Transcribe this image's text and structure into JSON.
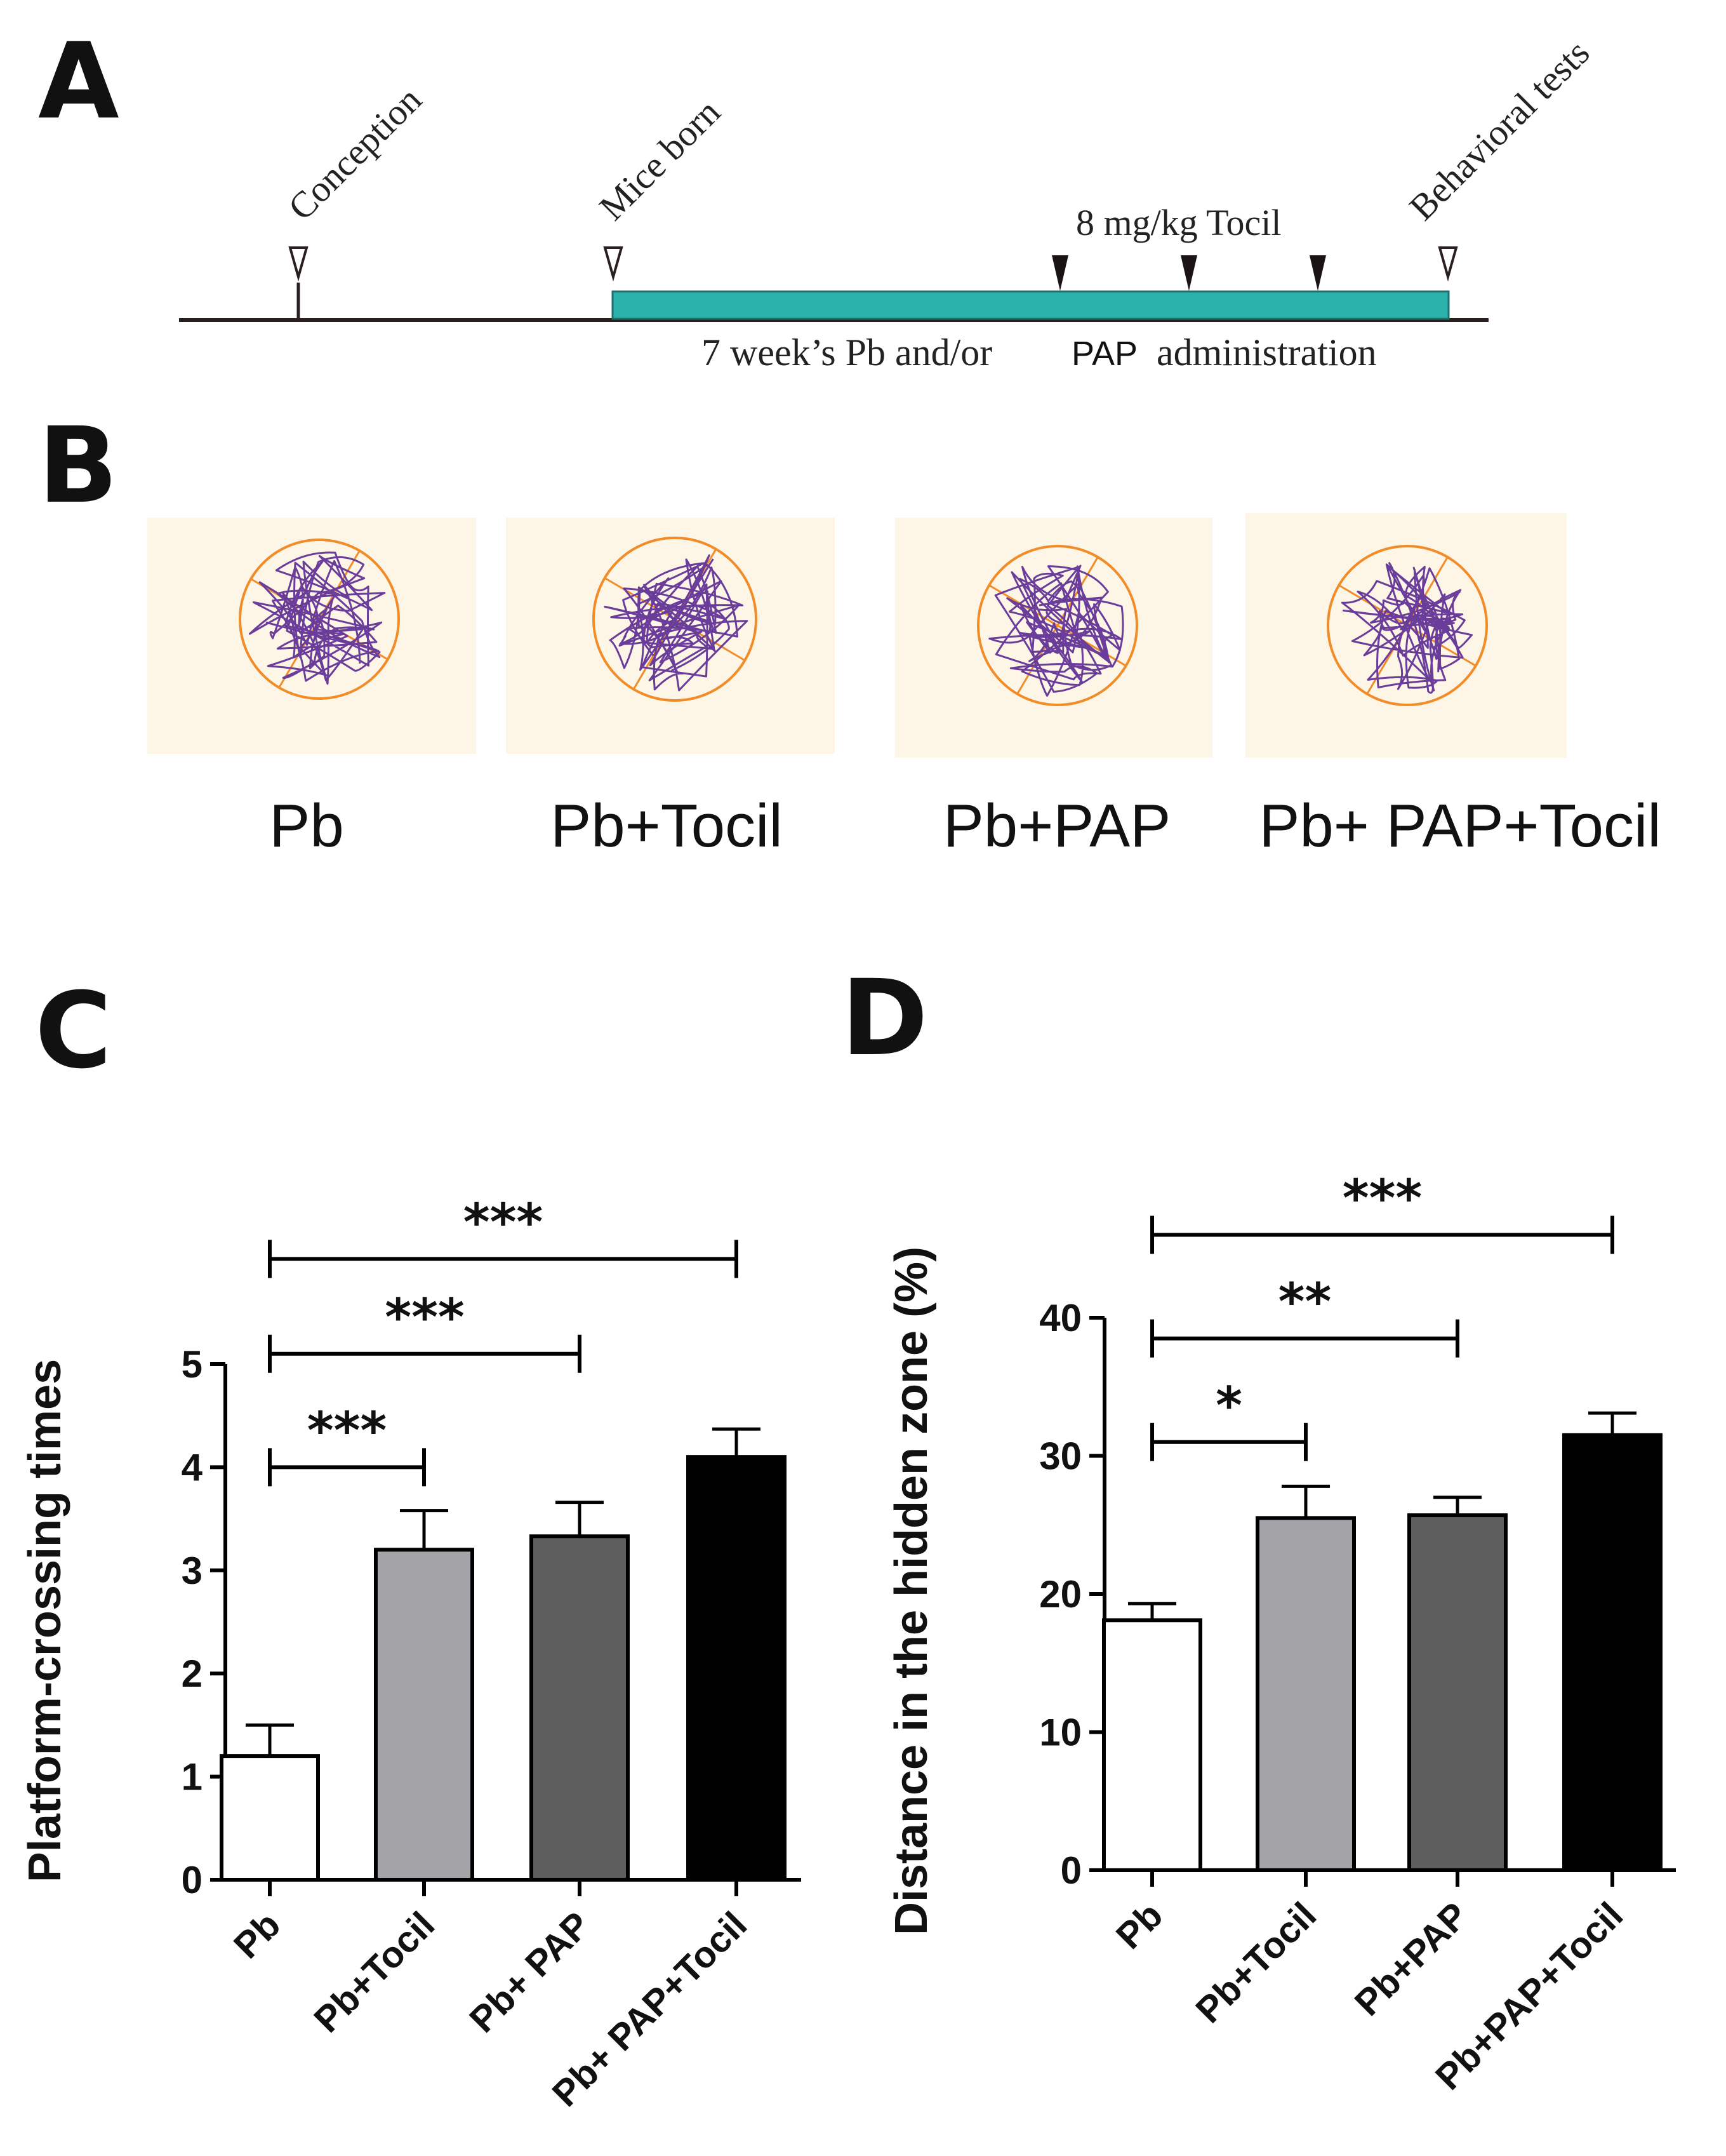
{
  "panels": {
    "a": "A",
    "b": "B",
    "c": "C",
    "d": "D"
  },
  "timeline": {
    "conception": "Conception",
    "mice_born": "Mice born",
    "behavioral_tests": "Behavioral tests",
    "tocil_dose": "8 mg/kg Tocil",
    "admin_prefix": "7 week’s Pb and/or",
    "admin_pap": "PAP",
    "admin_suffix": "administration",
    "colors": {
      "bar": "#2bb3ab",
      "line": "#2a1f1f"
    }
  },
  "tracks": {
    "labels": [
      "Pb",
      "Pb+Tocil",
      "Pb+PAP",
      "Pb+ PAP+Tocil"
    ],
    "colors": {
      "background": "#fdf5e6",
      "pool": "#f28c28",
      "path": "#6a3d9a"
    }
  },
  "chart_data": [
    {
      "type": "bar",
      "panel": "C",
      "categories": [
        "Pb",
        "Pb+Tocil",
        "Pb+ PAP",
        "Pb+ PAP+Tocil"
      ],
      "values": [
        1.2,
        3.2,
        3.33,
        4.1
      ],
      "errors": [
        0.3,
        0.38,
        0.33,
        0.27
      ],
      "colors": [
        "#ffffff",
        "#a3a3a8",
        "#5e5e5e",
        "#000000"
      ],
      "ylabel": "Platform-crossing times",
      "xlabel": "",
      "ylim": [
        0,
        5
      ],
      "yticks": [
        0,
        1,
        2,
        3,
        4,
        5
      ],
      "significance": [
        {
          "from": 0,
          "to": 1,
          "y": 4.0,
          "label": "***"
        },
        {
          "from": 0,
          "to": 2,
          "y": 5.1,
          "label": "***"
        },
        {
          "from": 0,
          "to": 3,
          "y": 6.02,
          "label": "***"
        }
      ]
    },
    {
      "type": "bar",
      "panel": "D",
      "categories": [
        "Pb",
        "Pb+Tocil",
        "Pb+PAP",
        "Pb+PAP+Tocil"
      ],
      "values": [
        18.1,
        25.5,
        25.7,
        31.5
      ],
      "errors": [
        1.2,
        2.3,
        1.3,
        1.6
      ],
      "colors": [
        "#ffffff",
        "#a3a3a8",
        "#5e5e5e",
        "#000000"
      ],
      "ylabel": "Distance in the hidden zone (%)",
      "xlabel": "",
      "ylim": [
        0,
        40
      ],
      "yticks": [
        0,
        10,
        20,
        30,
        40
      ],
      "significance": [
        {
          "from": 0,
          "to": 1,
          "y": 31,
          "label": "*"
        },
        {
          "from": 0,
          "to": 2,
          "y": 38.5,
          "label": "**"
        },
        {
          "from": 0,
          "to": 3,
          "y": 46,
          "label": "***"
        }
      ]
    }
  ]
}
